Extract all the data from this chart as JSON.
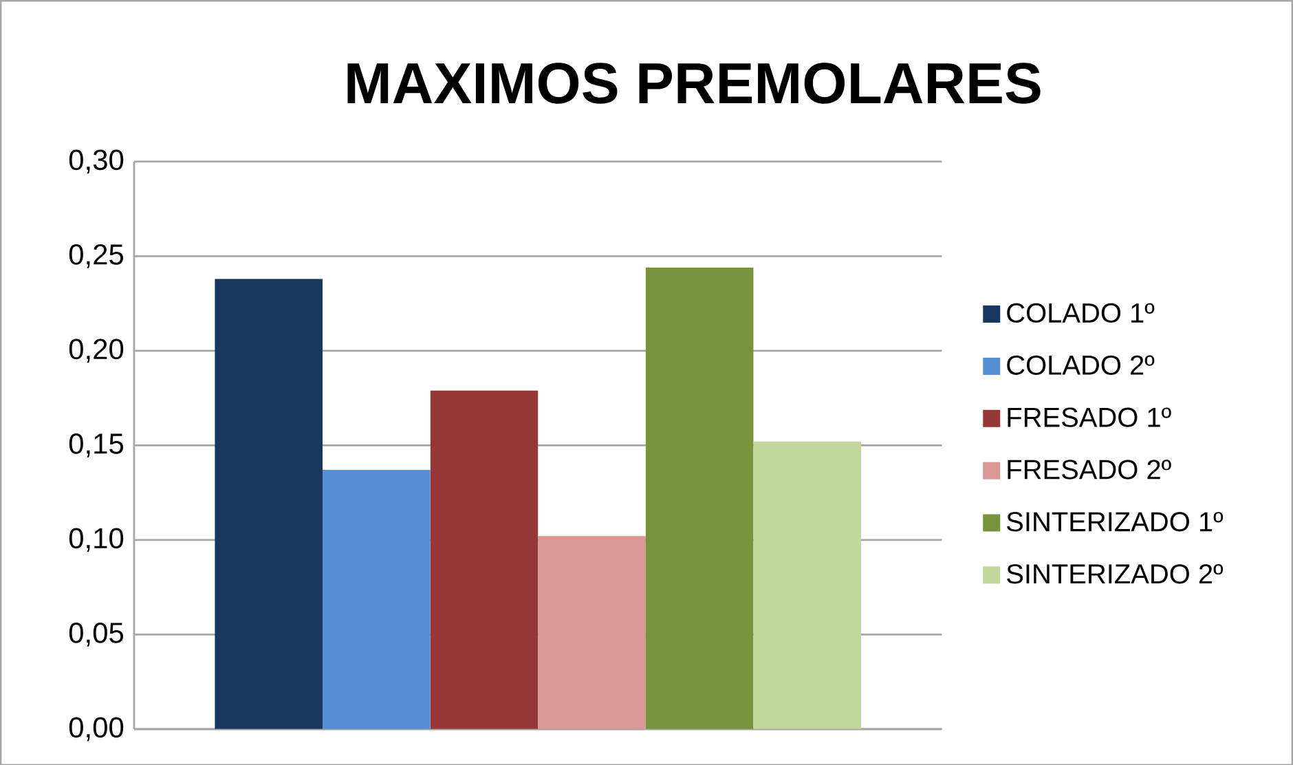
{
  "chart_data": {
    "type": "bar",
    "title": "MAXIMOS PREMOLARES",
    "categories": [
      null
    ],
    "series": [
      {
        "name": "COLADO 1º",
        "color": "#17375e",
        "values": [
          0.238
        ]
      },
      {
        "name": "COLADO 2º",
        "color": "#558ed5",
        "values": [
          0.137
        ]
      },
      {
        "name": "FRESADO 1º",
        "color": "#953735",
        "values": [
          0.179
        ]
      },
      {
        "name": "FRESADO 2º",
        "color": "#d99694",
        "values": [
          0.102
        ]
      },
      {
        "name": "SINTERIZADO 1º",
        "color": "#77933c",
        "values": [
          0.244
        ]
      },
      {
        "name": "SINTERIZADO 2º",
        "color": "#c3d69b",
        "values": [
          0.152
        ]
      }
    ],
    "ylim": [
      0,
      0.3
    ],
    "yticks": [
      {
        "value": 0,
        "label": "0,00"
      },
      {
        "value": 0.05,
        "label": "0,05"
      },
      {
        "value": 0.1,
        "label": "0,10"
      },
      {
        "value": 0.15,
        "label": "0,15"
      },
      {
        "value": 0.2,
        "label": "0,20"
      },
      {
        "value": 0.25,
        "label": "0,25"
      },
      {
        "value": 0.3,
        "label": "0,30"
      }
    ],
    "grid": "y",
    "legend": "right"
  }
}
